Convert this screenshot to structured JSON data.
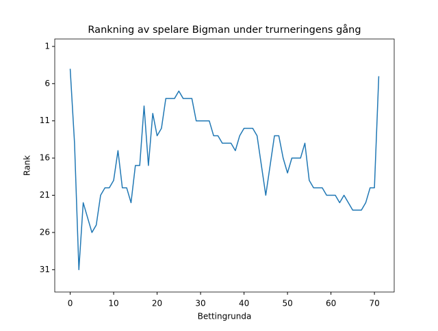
{
  "chart_data": {
    "type": "line",
    "title": "Rankning av spelare Bigman under trurneringens gång",
    "x_label": "Bettingrunda",
    "y_label": "Rank",
    "x": [
      0,
      1,
      2,
      3,
      4,
      5,
      6,
      7,
      8,
      9,
      10,
      11,
      12,
      13,
      14,
      15,
      16,
      17,
      18,
      19,
      20,
      21,
      22,
      23,
      24,
      25,
      26,
      27,
      28,
      29,
      30,
      31,
      32,
      33,
      34,
      35,
      36,
      37,
      38,
      39,
      40,
      41,
      42,
      43,
      44,
      45,
      46,
      47,
      48,
      49,
      50,
      51,
      52,
      53,
      54,
      55,
      56,
      57,
      58,
      59,
      60,
      61,
      62,
      63,
      64,
      65,
      66,
      67,
      68,
      69,
      70,
      71
    ],
    "series": [
      {
        "name": "Bigman",
        "color": "#1f77b4",
        "values": [
          4,
          14,
          31,
          22,
          24,
          26,
          25,
          21,
          20,
          20,
          19,
          15,
          20,
          20,
          22,
          17,
          17,
          9,
          17,
          10,
          13,
          12,
          8,
          8,
          8,
          7,
          8,
          8,
          8,
          11,
          11,
          11,
          11,
          13,
          13,
          14,
          14,
          14,
          15,
          13,
          12,
          12,
          12,
          13,
          17,
          21,
          17,
          13,
          13,
          16,
          18,
          16,
          16,
          16,
          14,
          19,
          20,
          20,
          20,
          21,
          21,
          21,
          22,
          21,
          22,
          23,
          23,
          23,
          22,
          20,
          20,
          5
        ]
      }
    ],
    "xlim": [
      -3.55,
      74.55
    ],
    "xticks": [
      0,
      10,
      20,
      30,
      40,
      50,
      60,
      70
    ],
    "ylim": [
      0,
      34
    ],
    "yticks": [
      1,
      6,
      11,
      16,
      21,
      26,
      31
    ],
    "y_inverted": true
  }
}
